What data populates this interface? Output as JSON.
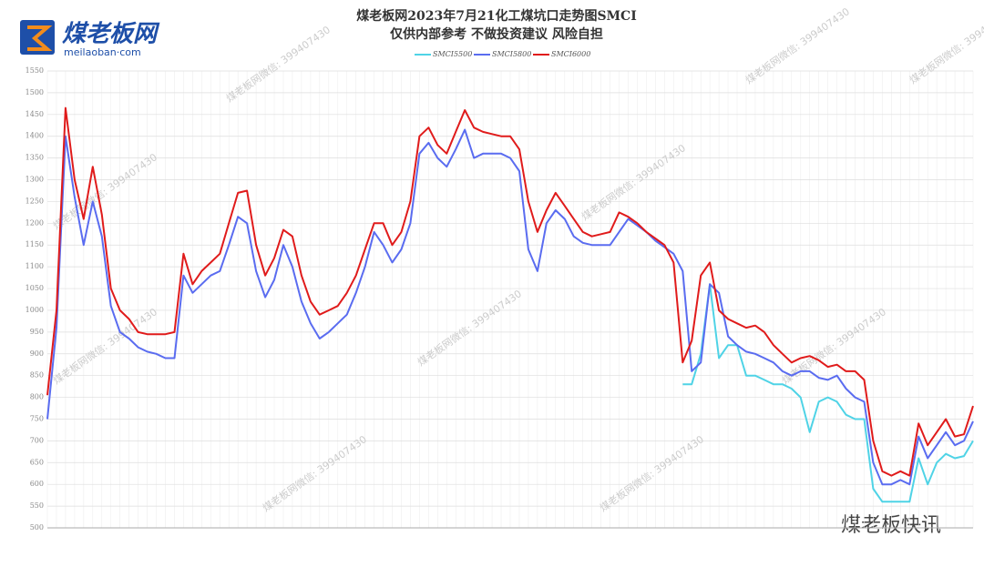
{
  "logo": {
    "name": "煤老板网",
    "site": "meilaoban·com"
  },
  "watermark": "煤老板网微信: 399407430",
  "footer_brand": "煤老板快讯",
  "chart_data": {
    "type": "line",
    "title": "煤老板网2023年7月21化工煤坑口走势图SMCI",
    "subtitle": "仅供内部参考 不做投资建议 风险自担",
    "ylim": [
      500,
      1550
    ],
    "yticks": [
      500,
      550,
      600,
      650,
      700,
      750,
      800,
      850,
      900,
      950,
      1000,
      1050,
      1100,
      1150,
      1200,
      1250,
      1300,
      1350,
      1400,
      1450,
      1500,
      1550
    ],
    "grid": true,
    "legend": "top",
    "series": [
      {
        "name": "SMCI5500",
        "color": "#4fd3e6",
        "values": [
          null,
          null,
          null,
          null,
          null,
          null,
          null,
          null,
          null,
          null,
          null,
          null,
          null,
          null,
          null,
          null,
          null,
          null,
          null,
          null,
          null,
          null,
          null,
          null,
          null,
          null,
          null,
          null,
          null,
          null,
          null,
          null,
          null,
          null,
          null,
          null,
          null,
          null,
          null,
          null,
          null,
          null,
          null,
          null,
          null,
          null,
          null,
          null,
          null,
          null,
          null,
          null,
          null,
          null,
          null,
          null,
          null,
          null,
          null,
          null,
          null,
          null,
          null,
          null,
          null,
          null,
          null,
          null,
          null,
          null,
          830,
          830,
          900,
          1060,
          890,
          920,
          920,
          850,
          850,
          840,
          830,
          830,
          820,
          800,
          720,
          790,
          800,
          790,
          760,
          750,
          750,
          590,
          560,
          560,
          560,
          560,
          660,
          600,
          650,
          670,
          660,
          665,
          700
        ]
      },
      {
        "name": "SMCI5800",
        "color": "#5a6cf0",
        "values": [
          750,
          960,
          1400,
          1260,
          1150,
          1250,
          1170,
          1010,
          950,
          935,
          915,
          905,
          900,
          890,
          890,
          1080,
          1040,
          1060,
          1080,
          1090,
          1150,
          1215,
          1200,
          1090,
          1030,
          1070,
          1150,
          1100,
          1020,
          970,
          935,
          950,
          970,
          990,
          1040,
          1100,
          1180,
          1150,
          1110,
          1140,
          1200,
          1360,
          1385,
          1350,
          1330,
          1370,
          1415,
          1350,
          1360,
          1360,
          1360,
          1350,
          1320,
          1140,
          1090,
          1200,
          1230,
          1210,
          1170,
          1155,
          1150,
          1150,
          1150,
          1180,
          1210,
          1195,
          1180,
          1160,
          1145,
          1130,
          1090,
          860,
          880,
          1060,
          1040,
          940,
          920,
          905,
          900,
          890,
          880,
          860,
          850,
          860,
          860,
          845,
          840,
          850,
          820,
          800,
          790,
          650,
          600,
          600,
          610,
          600,
          710,
          660,
          690,
          720,
          690,
          700,
          745
        ]
      },
      {
        "name": "SMCI6000",
        "color": "#e01b1b",
        "values": [
          805,
          1000,
          1465,
          1300,
          1210,
          1330,
          1220,
          1050,
          1000,
          980,
          950,
          945,
          945,
          945,
          950,
          1130,
          1060,
          1090,
          1110,
          1130,
          1200,
          1270,
          1275,
          1150,
          1080,
          1120,
          1185,
          1170,
          1080,
          1020,
          990,
          1000,
          1010,
          1040,
          1080,
          1140,
          1200,
          1200,
          1150,
          1180,
          1250,
          1400,
          1420,
          1380,
          1360,
          1410,
          1460,
          1420,
          1410,
          1405,
          1400,
          1400,
          1370,
          1250,
          1180,
          1230,
          1270,
          1240,
          1210,
          1180,
          1170,
          1175,
          1180,
          1225,
          1215,
          1200,
          1180,
          1165,
          1150,
          1110,
          880,
          930,
          1080,
          1110,
          1000,
          980,
          970,
          960,
          965,
          950,
          920,
          900,
          880,
          890,
          895,
          885,
          870,
          875,
          860,
          860,
          840,
          700,
          630,
          620,
          630,
          620,
          740,
          690,
          720,
          750,
          710,
          715,
          780
        ]
      }
    ]
  }
}
